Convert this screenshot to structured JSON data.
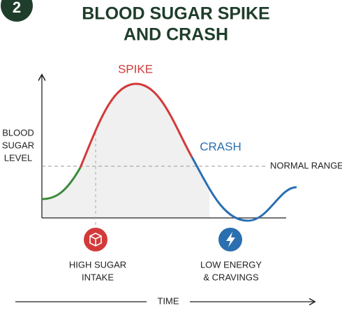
{
  "header": {
    "badge": "2",
    "title_lines": [
      "BLOOD SUGAR SPIKE",
      "AND CRASH"
    ]
  },
  "axes": {
    "y_label_lines": [
      "BLOOD",
      "SUGAR",
      "LEVEL"
    ],
    "x_label": "TIME"
  },
  "labels": {
    "spike": "SPIKE",
    "crash": "CRASH",
    "normal_range": "NORMAL RANGE"
  },
  "events": [
    {
      "label_lines": [
        "HIGH SUGAR",
        "INTAKE"
      ]
    },
    {
      "label_lines": [
        "LOW ENERGY",
        "& CRAVINGS"
      ]
    }
  ]
}
